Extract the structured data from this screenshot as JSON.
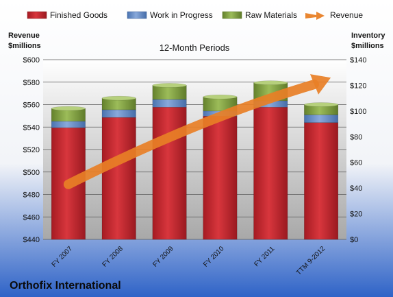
{
  "chart_data": {
    "type": "bar",
    "title": "12-Month Periods",
    "footer": "Orthofix International",
    "left_axis_label": [
      "Revenue",
      "$millions"
    ],
    "right_axis_label": [
      "Inventory",
      "$millions"
    ],
    "categories": [
      "FY 2007",
      "FY 2008",
      "FY 2009",
      "FY 2010",
      "FY 2011",
      "TTM 9-2012"
    ],
    "left_axis": {
      "min": 440,
      "max": 600,
      "step": 20,
      "prefix": "$"
    },
    "right_axis": {
      "min": 0,
      "max": 140,
      "step": 20,
      "prefix": "$"
    },
    "stacked_series_axis": "right",
    "series": [
      {
        "name": "Finished Goods",
        "color": "#c0262d",
        "values": [
          87,
          95,
          103,
          96,
          103,
          91
        ]
      },
      {
        "name": "Work in Progress",
        "color": "#5b87c8",
        "values": [
          5,
          6,
          6,
          4,
          5,
          6
        ]
      },
      {
        "name": "Raw Materials",
        "color": "#7a9a3a",
        "values": [
          10,
          9,
          11,
          11,
          14,
          8
        ]
      }
    ],
    "revenue_series": {
      "name": "Revenue",
      "color": "#e87f26",
      "axis": "left",
      "style": "trend-arrow",
      "values": [
        {
          "x": "FY 2007",
          "y": 489
        },
        {
          "x": "TTM 9-2012",
          "y": 584
        }
      ]
    },
    "legend": {
      "placement": "top",
      "items": [
        "Finished Goods",
        "Work in Progress",
        "Raw Materials",
        "Revenue"
      ]
    }
  }
}
